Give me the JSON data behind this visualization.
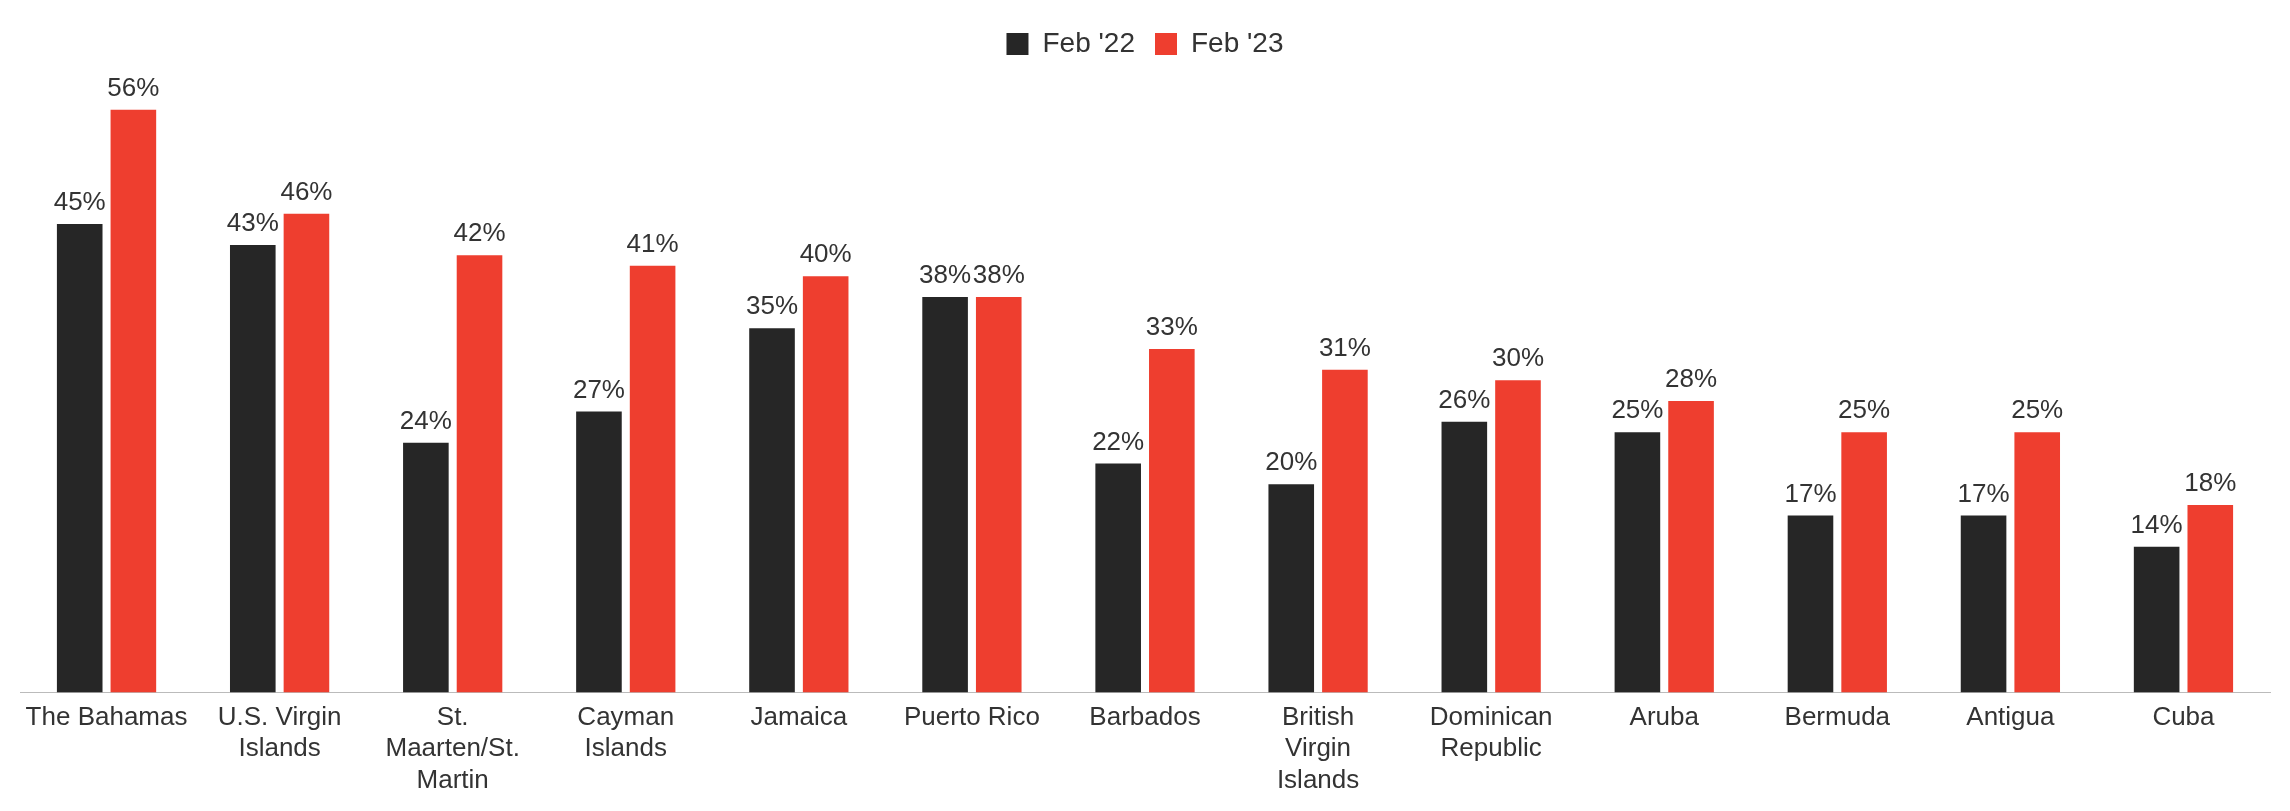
{
  "chart_data": {
    "type": "bar",
    "categories": [
      "The Bahamas",
      "U.S. Virgin Islands",
      "St. Maarten/St. Martin",
      "Cayman Islands",
      "Jamaica",
      "Puerto Rico",
      "Barbados",
      "British Virgin Islands",
      "Dominican Republic",
      "Aruba",
      "Bermuda",
      "Antigua",
      "Cuba"
    ],
    "series": [
      {
        "name": "Feb '22",
        "color": "#262626",
        "values": [
          45,
          43,
          24,
          27,
          35,
          38,
          22,
          20,
          26,
          25,
          17,
          17,
          14
        ],
        "value_labels": [
          "45%",
          "43%",
          "24%",
          "27%",
          "35%",
          "38%",
          "22%",
          "20%",
          "26%",
          "25%",
          "17%",
          "17%",
          "14%"
        ]
      },
      {
        "name": "Feb '23",
        "color": "#ee3e2f",
        "values": [
          56,
          46,
          42,
          41,
          40,
          38,
          33,
          31,
          30,
          28,
          25,
          25,
          18
        ],
        "value_labels": [
          "56%",
          "46%",
          "42%",
          "41%",
          "40%",
          "38%",
          "33%",
          "31%",
          "30%",
          "28%",
          "25%",
          "25%",
          "18%"
        ]
      }
    ],
    "legend": "top",
    "grid": false
  }
}
